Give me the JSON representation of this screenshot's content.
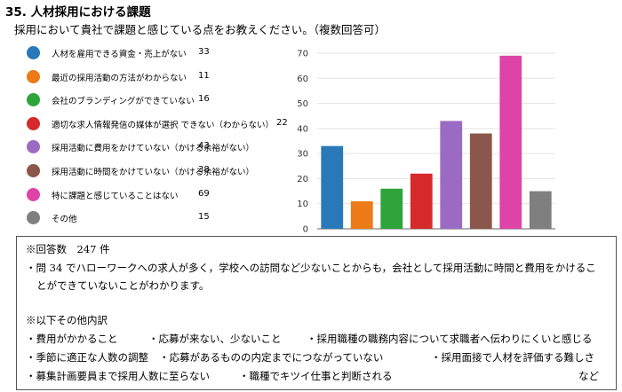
{
  "heading": {
    "title": "35. 人材採用における課題",
    "subtitle": "採用において貴社で課題と感じている点をお教えください。（複数回答可）"
  },
  "chart_data": {
    "type": "bar",
    "categories": [
      "人材を雇用できる資金・売上がない",
      "最近の採用活動の方法がわからない",
      "会社のブランディングができていない",
      "適切な求人情報発信の媒体が選択 できない（わからない）",
      "採用活動に費用をかけていない（かける余裕がない）",
      "採用活動に時間をかけていない（かける余裕がない）",
      "特に課題と感じていることはない",
      "その他"
    ],
    "values": [
      33,
      11,
      16,
      22,
      43,
      38,
      69,
      15
    ],
    "colors": [
      "#2979b8",
      "#ec7a16",
      "#2ea43a",
      "#d52a2a",
      "#9b6bc4",
      "#8b564b",
      "#de44a8",
      "#7f7f7f"
    ],
    "ylim": [
      0,
      70
    ],
    "yticks": [
      "0",
      "10",
      "20",
      "30",
      "40",
      "50",
      "60",
      "70"
    ]
  },
  "notes": {
    "count_line": "※回答数　247 件",
    "comment_line1": "・問 34 でハローワークへの求人が多く，学校への訪問など少ないことからも，会社として採用活動に時間と費用をかけるこ",
    "comment_line2": "とができていないことがわかります。",
    "other_header": "※以下その他内訳",
    "items": [
      "・費用がかかること",
      "・応募が来ない、少ないこと",
      "・採用職種の職務内容について求職者へ伝わりにくいと感じる",
      "・季節に適正な人数の調整",
      "・応募があるものの内定までにつながっていない",
      "・採用面接で人材を評価する難しさ",
      "・募集計画要員まで採用人数に至らない",
      "・職種でキツイ仕事と判断される",
      "など"
    ]
  }
}
